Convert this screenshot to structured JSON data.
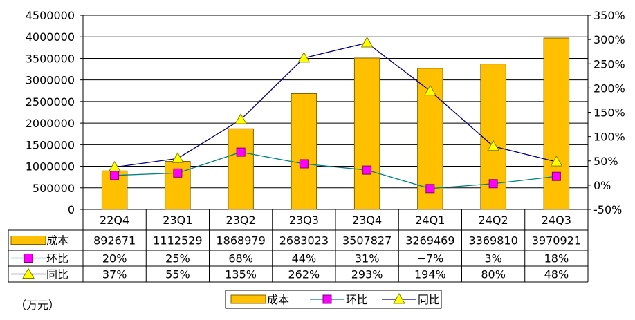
{
  "unit_note": "（万元）",
  "colors": {
    "bar": "#FFC000",
    "bar_edge": "#7F6000",
    "qoq_line": "#008080",
    "qoq_marker": "#FF00FF",
    "yoy_line": "#000080",
    "yoy_marker": "#FFFF00"
  },
  "chart_data": {
    "type": "bar",
    "categories": [
      "22Q4",
      "23Q1",
      "23Q2",
      "23Q3",
      "23Q4",
      "24Q1",
      "24Q2",
      "24Q3"
    ],
    "series": [
      {
        "name": "成本",
        "kind": "bar",
        "axis": "left",
        "values": [
          892671,
          1112529,
          1868979,
          2683023,
          3507827,
          3269469,
          3369810,
          3970921
        ]
      },
      {
        "name": "环比",
        "kind": "line",
        "axis": "right",
        "marker": "square",
        "values": [
          20,
          25,
          68,
          44,
          31,
          -7,
          3,
          18
        ]
      },
      {
        "name": "同比",
        "kind": "line",
        "axis": "right",
        "marker": "triangle",
        "values": [
          37,
          55,
          135,
          262,
          293,
          194,
          80,
          48
        ]
      }
    ],
    "y_left": {
      "min": 0,
      "max": 4500000,
      "step": 500000,
      "ticks": [
        "0",
        "500000",
        "1000000",
        "1500000",
        "2000000",
        "2500000",
        "3000000",
        "3500000",
        "4000000",
        "4500000"
      ]
    },
    "y_right": {
      "min": -50,
      "max": 350,
      "step": 50,
      "ticks": [
        "-50%",
        "0%",
        "50%",
        "100%",
        "150%",
        "200%",
        "250%",
        "300%",
        "350%"
      ]
    },
    "table_rows": [
      {
        "label": "成本",
        "cells": [
          "892671",
          "1112529",
          "1868979",
          "2683023",
          "3507827",
          "3269469",
          "3369810",
          "3970921"
        ]
      },
      {
        "label": "环比",
        "cells": [
          "20%",
          "25%",
          "68%",
          "44%",
          "31%",
          "−7%",
          "3%",
          "18%"
        ]
      },
      {
        "label": "同比",
        "cells": [
          "37%",
          "55%",
          "135%",
          "262%",
          "293%",
          "194%",
          "80%",
          "48%"
        ]
      }
    ],
    "legend": [
      "成本",
      "环比",
      "同比"
    ],
    "legend_position": "bottom",
    "grid": true
  }
}
